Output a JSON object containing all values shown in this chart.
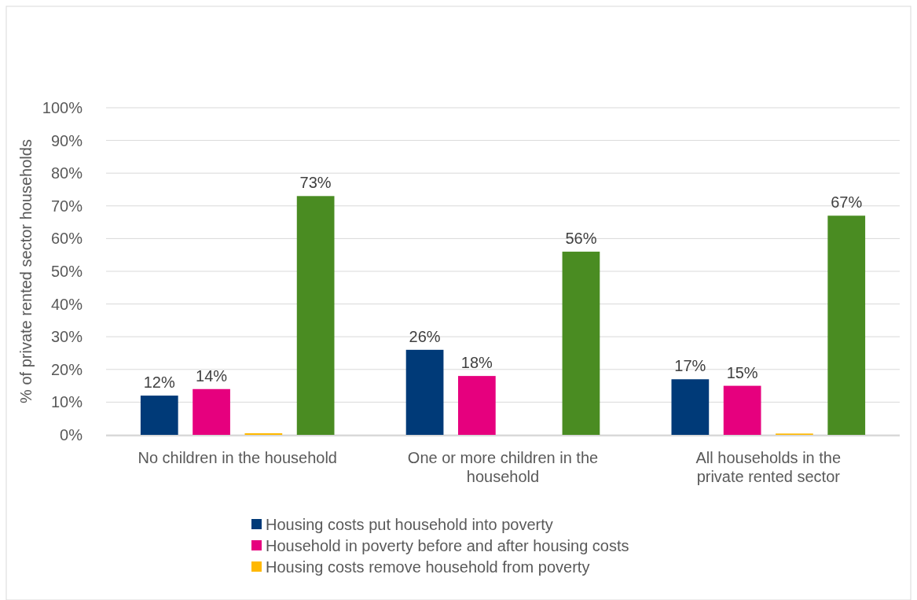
{
  "chart_data": {
    "type": "bar",
    "ylabel": "% of private rented sector households",
    "categories": [
      "No children in the household",
      "One or more children in the household",
      "All households in the private rented sector"
    ],
    "series": [
      {
        "name": "Housing costs put household into poverty",
        "color": "#003a78",
        "values": [
          12,
          26,
          17
        ],
        "value_labels": [
          "12%",
          "26%",
          "17%"
        ]
      },
      {
        "name": "Household in poverty before and after housing costs",
        "color": "#e6007e",
        "values": [
          14,
          18,
          15
        ],
        "value_labels": [
          "14%",
          "18%",
          "15%"
        ]
      },
      {
        "name": "Housing costs remove household from poverty",
        "color": "#ffb800",
        "values": [
          0.5,
          0,
          0.4
        ],
        "value_labels": [
          null,
          null,
          null
        ]
      },
      {
        "color": "#4a8c22",
        "values": [
          73,
          56,
          67
        ],
        "value_labels": [
          "73%",
          "56%",
          "67%"
        ]
      }
    ],
    "ylim": [
      0,
      100
    ],
    "yticks": [
      {
        "value": 0,
        "label": "0%"
      },
      {
        "value": 10,
        "label": "10%"
      },
      {
        "value": 20,
        "label": "20%"
      },
      {
        "value": 30,
        "label": "30%"
      },
      {
        "value": 40,
        "label": "40%"
      },
      {
        "value": 50,
        "label": "50%"
      },
      {
        "value": 60,
        "label": "60%"
      },
      {
        "value": 70,
        "label": "70%"
      },
      {
        "value": 80,
        "label": "80%"
      },
      {
        "value": 90,
        "label": "90%"
      },
      {
        "value": 100,
        "label": "100%"
      }
    ],
    "grid": "y",
    "legend": "bottom"
  }
}
